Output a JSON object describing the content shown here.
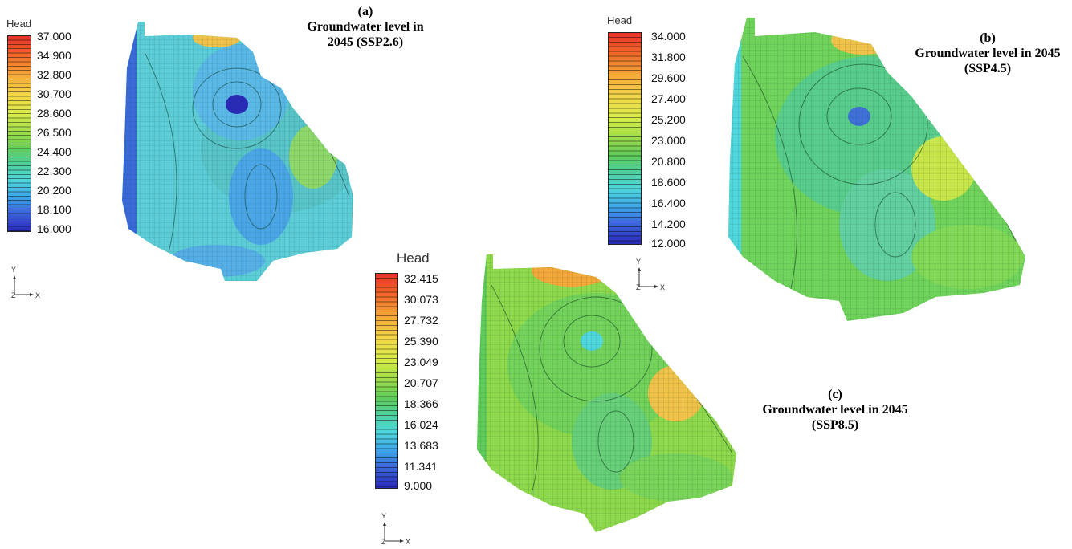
{
  "panels": [
    {
      "id": "a",
      "legend_title": "Head",
      "legend_ticks": [
        "37.000",
        "34.900",
        "32.800",
        "30.700",
        "28.600",
        "26.500",
        "24.400",
        "22.300",
        "20.200",
        "18.100",
        "16.000"
      ],
      "caption_letter": "(a)",
      "caption_line1": "Groundwater level in",
      "caption_line2": "2045 (SSP2.6)",
      "axis": {
        "y": "Y",
        "z": "Z",
        "x": "X"
      }
    },
    {
      "id": "b",
      "legend_title": "Head",
      "legend_ticks": [
        "34.000",
        "31.800",
        "29.600",
        "27.400",
        "25.200",
        "23.000",
        "20.800",
        "18.600",
        "16.400",
        "14.200",
        "12.000"
      ],
      "caption_letter": "(b)",
      "caption_line1": "Groundwater level in 2045",
      "caption_line2": "(SSP4.5)",
      "axis": {
        "y": "Y",
        "z": "Z",
        "x": "X"
      }
    },
    {
      "id": "c",
      "legend_title": "Head",
      "legend_ticks": [
        "32.415",
        "30.073",
        "27.732",
        "25.390",
        "23.049",
        "20.707",
        "18.366",
        "16.024",
        "13.683",
        "11.341",
        "9.000"
      ],
      "caption_letter": "(c)",
      "caption_line1": "Groundwater level in 2045",
      "caption_line2": "(SSP8.5)",
      "axis": {
        "y": "Y",
        "z": "Z",
        "x": "X"
      }
    }
  ],
  "colors": {
    "scale": [
      "#e8312a",
      "#f06a2a",
      "#f5a83a",
      "#f3d648",
      "#d8ec4a",
      "#9bdc4a",
      "#5fcc5a",
      "#4fd0a0",
      "#4ed6dc",
      "#3ea8e8",
      "#3a62d8",
      "#2a2ab8"
    ]
  }
}
